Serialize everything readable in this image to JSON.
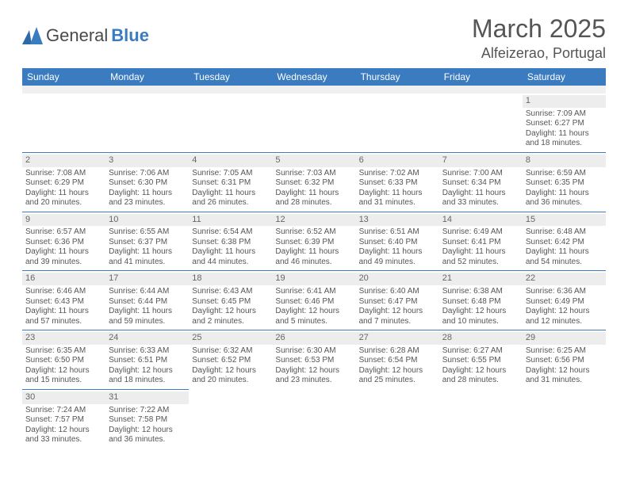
{
  "brand": {
    "name1": "General",
    "name2": "Blue"
  },
  "title": {
    "month": "March 2025",
    "location": "Alfeizerao, Portugal"
  },
  "dow": [
    "Sunday",
    "Monday",
    "Tuesday",
    "Wednesday",
    "Thursday",
    "Friday",
    "Saturday"
  ],
  "colors": {
    "accent": "#3b7bbf",
    "headerText": "#ffffff",
    "text": "#555555",
    "dayBg": "#ededed"
  },
  "weeks": [
    [
      null,
      null,
      null,
      null,
      null,
      null,
      {
        "d": "1",
        "sr": "7:09 AM",
        "ss": "6:27 PM",
        "dl": "11 hours and 18 minutes."
      }
    ],
    [
      {
        "d": "2",
        "sr": "7:08 AM",
        "ss": "6:29 PM",
        "dl": "11 hours and 20 minutes."
      },
      {
        "d": "3",
        "sr": "7:06 AM",
        "ss": "6:30 PM",
        "dl": "11 hours and 23 minutes."
      },
      {
        "d": "4",
        "sr": "7:05 AM",
        "ss": "6:31 PM",
        "dl": "11 hours and 26 minutes."
      },
      {
        "d": "5",
        "sr": "7:03 AM",
        "ss": "6:32 PM",
        "dl": "11 hours and 28 minutes."
      },
      {
        "d": "6",
        "sr": "7:02 AM",
        "ss": "6:33 PM",
        "dl": "11 hours and 31 minutes."
      },
      {
        "d": "7",
        "sr": "7:00 AM",
        "ss": "6:34 PM",
        "dl": "11 hours and 33 minutes."
      },
      {
        "d": "8",
        "sr": "6:59 AM",
        "ss": "6:35 PM",
        "dl": "11 hours and 36 minutes."
      }
    ],
    [
      {
        "d": "9",
        "sr": "6:57 AM",
        "ss": "6:36 PM",
        "dl": "11 hours and 39 minutes."
      },
      {
        "d": "10",
        "sr": "6:55 AM",
        "ss": "6:37 PM",
        "dl": "11 hours and 41 minutes."
      },
      {
        "d": "11",
        "sr": "6:54 AM",
        "ss": "6:38 PM",
        "dl": "11 hours and 44 minutes."
      },
      {
        "d": "12",
        "sr": "6:52 AM",
        "ss": "6:39 PM",
        "dl": "11 hours and 46 minutes."
      },
      {
        "d": "13",
        "sr": "6:51 AM",
        "ss": "6:40 PM",
        "dl": "11 hours and 49 minutes."
      },
      {
        "d": "14",
        "sr": "6:49 AM",
        "ss": "6:41 PM",
        "dl": "11 hours and 52 minutes."
      },
      {
        "d": "15",
        "sr": "6:48 AM",
        "ss": "6:42 PM",
        "dl": "11 hours and 54 minutes."
      }
    ],
    [
      {
        "d": "16",
        "sr": "6:46 AM",
        "ss": "6:43 PM",
        "dl": "11 hours and 57 minutes."
      },
      {
        "d": "17",
        "sr": "6:44 AM",
        "ss": "6:44 PM",
        "dl": "11 hours and 59 minutes."
      },
      {
        "d": "18",
        "sr": "6:43 AM",
        "ss": "6:45 PM",
        "dl": "12 hours and 2 minutes."
      },
      {
        "d": "19",
        "sr": "6:41 AM",
        "ss": "6:46 PM",
        "dl": "12 hours and 5 minutes."
      },
      {
        "d": "20",
        "sr": "6:40 AM",
        "ss": "6:47 PM",
        "dl": "12 hours and 7 minutes."
      },
      {
        "d": "21",
        "sr": "6:38 AM",
        "ss": "6:48 PM",
        "dl": "12 hours and 10 minutes."
      },
      {
        "d": "22",
        "sr": "6:36 AM",
        "ss": "6:49 PM",
        "dl": "12 hours and 12 minutes."
      }
    ],
    [
      {
        "d": "23",
        "sr": "6:35 AM",
        "ss": "6:50 PM",
        "dl": "12 hours and 15 minutes."
      },
      {
        "d": "24",
        "sr": "6:33 AM",
        "ss": "6:51 PM",
        "dl": "12 hours and 18 minutes."
      },
      {
        "d": "25",
        "sr": "6:32 AM",
        "ss": "6:52 PM",
        "dl": "12 hours and 20 minutes."
      },
      {
        "d": "26",
        "sr": "6:30 AM",
        "ss": "6:53 PM",
        "dl": "12 hours and 23 minutes."
      },
      {
        "d": "27",
        "sr": "6:28 AM",
        "ss": "6:54 PM",
        "dl": "12 hours and 25 minutes."
      },
      {
        "d": "28",
        "sr": "6:27 AM",
        "ss": "6:55 PM",
        "dl": "12 hours and 28 minutes."
      },
      {
        "d": "29",
        "sr": "6:25 AM",
        "ss": "6:56 PM",
        "dl": "12 hours and 31 minutes."
      }
    ],
    [
      {
        "d": "30",
        "sr": "7:24 AM",
        "ss": "7:57 PM",
        "dl": "12 hours and 33 minutes."
      },
      {
        "d": "31",
        "sr": "7:22 AM",
        "ss": "7:58 PM",
        "dl": "12 hours and 36 minutes."
      },
      null,
      null,
      null,
      null,
      null
    ]
  ],
  "labels": {
    "sunrise": "Sunrise:",
    "sunset": "Sunset:",
    "daylight": "Daylight:"
  }
}
